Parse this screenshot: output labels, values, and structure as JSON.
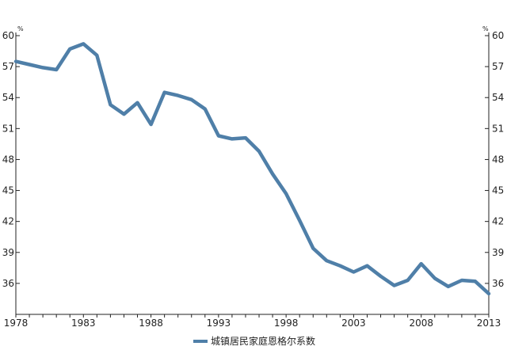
{
  "chart_data": {
    "type": "line",
    "title": "",
    "xlabel": "",
    "ylabel": "",
    "y_unit": "%",
    "xlim": [
      1978,
      2013
    ],
    "ylim": [
      33,
      60
    ],
    "y_ticks": [
      36,
      39,
      42,
      45,
      48,
      51,
      54,
      57,
      60
    ],
    "x_ticks": [
      1978,
      1983,
      1988,
      1993,
      1998,
      2003,
      2008,
      2013
    ],
    "dual_y_axis": true,
    "grid": false,
    "legend_position": "bottom",
    "series": [
      {
        "name": "城镇居民家庭恩格尔系数",
        "color": "#4f7fa8",
        "x": [
          1978,
          1979,
          1980,
          1981,
          1982,
          1983,
          1984,
          1985,
          1986,
          1987,
          1988,
          1989,
          1990,
          1991,
          1992,
          1993,
          1994,
          1995,
          1996,
          1997,
          1998,
          1999,
          2000,
          2001,
          2002,
          2003,
          2004,
          2005,
          2006,
          2007,
          2008,
          2009,
          2010,
          2011,
          2012,
          2013
        ],
        "values": [
          57.5,
          57.2,
          56.9,
          56.7,
          58.7,
          59.2,
          58.1,
          53.3,
          52.4,
          53.5,
          51.4,
          54.5,
          54.2,
          53.8,
          52.9,
          50.3,
          50.0,
          50.1,
          48.8,
          46.6,
          44.7,
          42.1,
          39.4,
          38.2,
          37.7,
          37.1,
          37.7,
          36.7,
          35.8,
          36.3,
          37.9,
          36.5,
          35.7,
          36.3,
          36.2,
          35.0
        ]
      }
    ]
  }
}
